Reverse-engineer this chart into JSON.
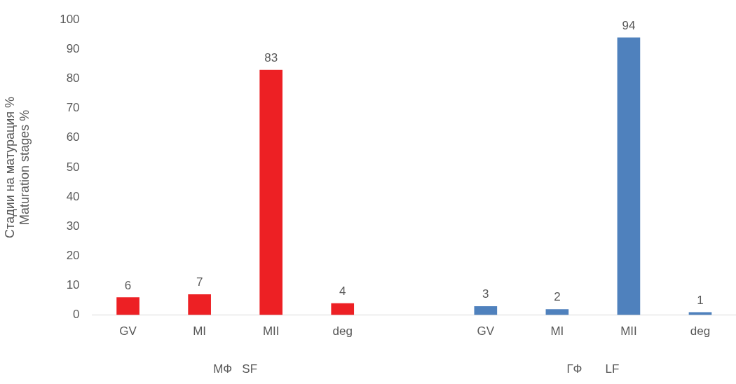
{
  "chart_data": {
    "type": "bar",
    "ylabel": "Стадии на матурация %\nMaturation stages %",
    "categories": [
      "GV",
      "MI",
      "MII",
      "deg",
      null,
      "GV",
      "MI",
      "MII",
      "deg"
    ],
    "series": [
      {
        "color": "#ed2024",
        "values": [
          6,
          7,
          83,
          4,
          null,
          null,
          null,
          null,
          null
        ]
      },
      {
        "color": "#4f81bd",
        "values": [
          null,
          null,
          null,
          null,
          null,
          3,
          2,
          94,
          1
        ]
      }
    ],
    "ylim": [
      0,
      100
    ],
    "yticks": [
      0,
      10,
      20,
      30,
      40,
      50,
      60,
      70,
      80,
      90,
      100
    ],
    "grid": false,
    "legend": false,
    "data_labels": true,
    "annotations": [
      "МФ   SF",
      "ГФ       LF"
    ]
  }
}
